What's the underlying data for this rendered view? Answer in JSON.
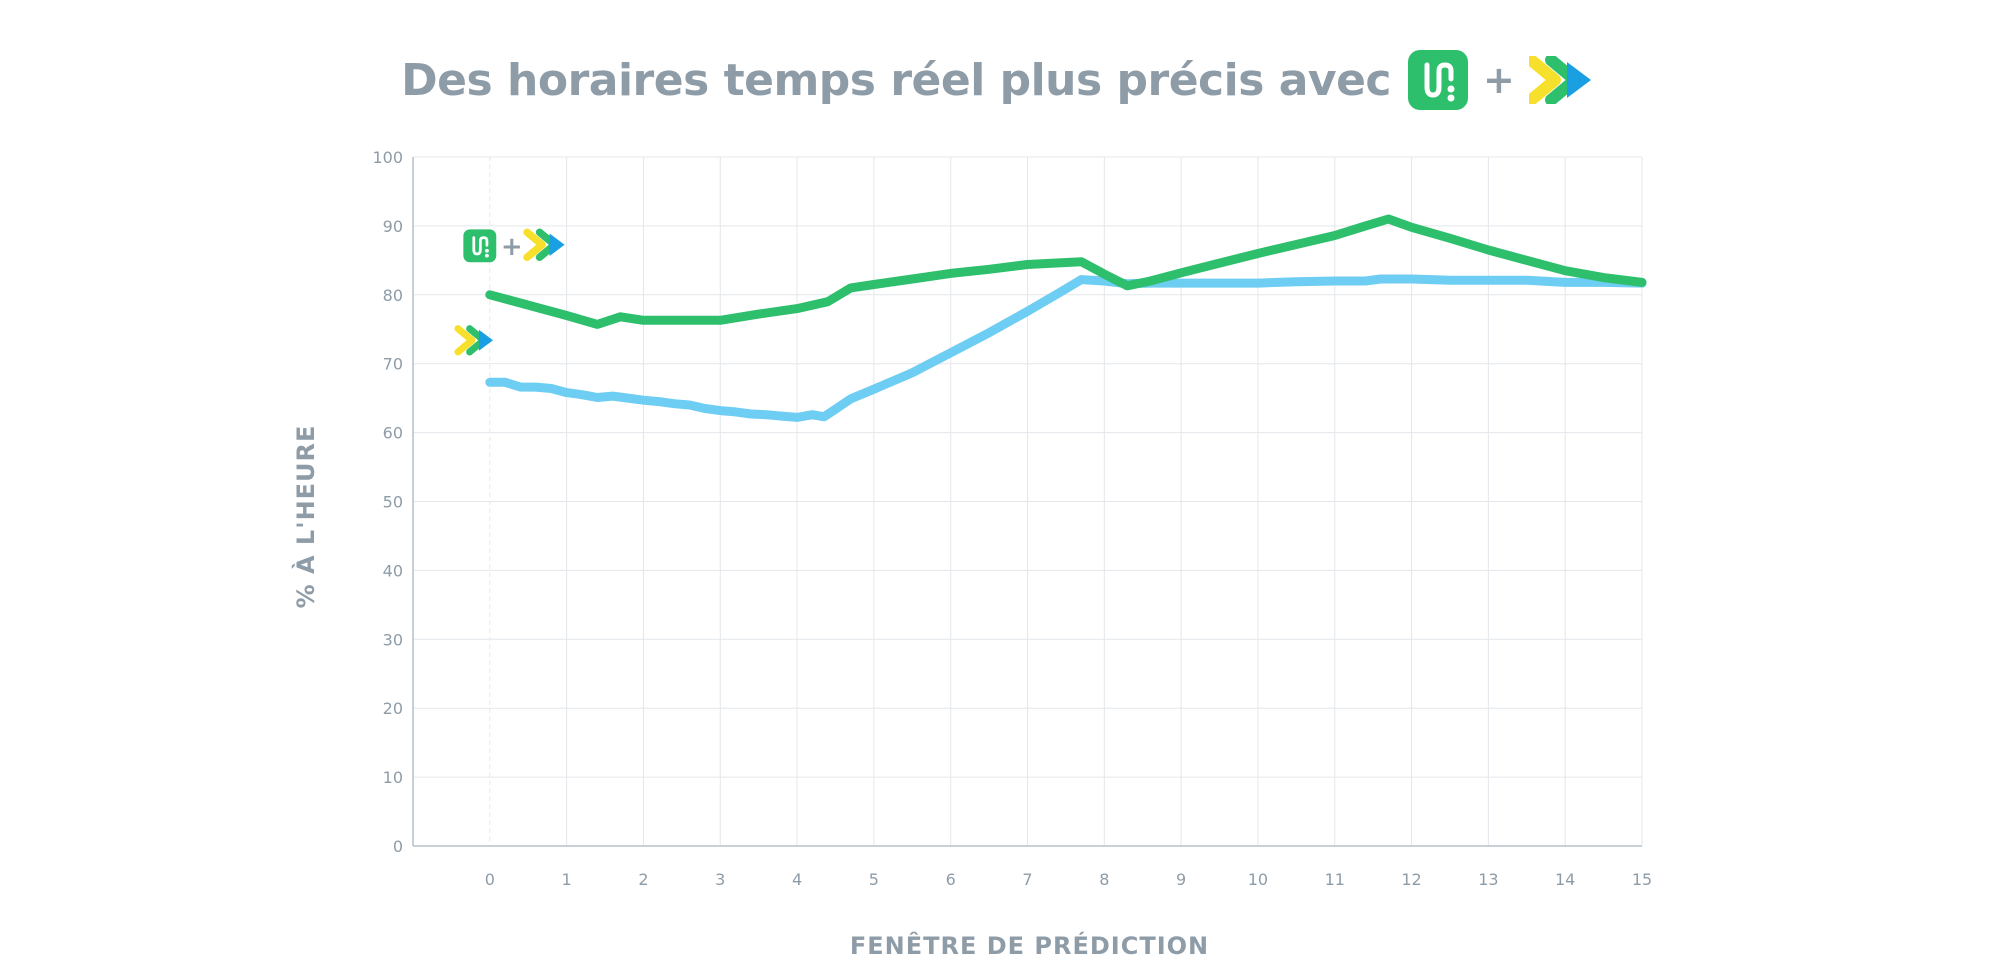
{
  "title": {
    "text": "Des horaires temps réel plus précis avec",
    "plus": "+",
    "icons": [
      "transit-app-icon",
      "partner-arrows-icon"
    ]
  },
  "colors": {
    "axis_text": "#8e9ca8",
    "grid": "#e3e7eb",
    "axis": "#b7c2cc",
    "combined_series": "#2dbf6c",
    "partner_series": "#6dcdf2",
    "transit_icon_bg": "#2dbf6c",
    "arrow_yellow": "#f7e02b",
    "arrow_green": "#2dbf6c",
    "arrow_blue": "#1aa0e2"
  },
  "chart_data": {
    "type": "line",
    "xlabel": "FENÊTRE DE PRÉDICTION",
    "ylabel": "% À L'HEURE",
    "xlim": [
      -1,
      15
    ],
    "ylim": [
      0,
      100
    ],
    "x_ticks": [
      0,
      1,
      2,
      3,
      4,
      5,
      6,
      7,
      8,
      9,
      10,
      11,
      12,
      13,
      14,
      15
    ],
    "y_ticks": [
      0,
      10,
      20,
      30,
      40,
      50,
      60,
      70,
      80,
      90,
      100
    ],
    "grid": true,
    "legend": "inline labels with icons at start of each line",
    "series": [
      {
        "icons": [
          "transit-app-icon",
          "plus",
          "partner-arrows-icon"
        ],
        "color": "#2dbf6c",
        "points": [
          [
            0,
            80
          ],
          [
            0.5,
            78.5
          ],
          [
            1,
            77
          ],
          [
            1.4,
            75.7
          ],
          [
            1.7,
            76.8
          ],
          [
            2,
            76.3
          ],
          [
            2.5,
            76.3
          ],
          [
            3,
            76.3
          ],
          [
            3.5,
            77.2
          ],
          [
            4,
            78
          ],
          [
            4.4,
            79
          ],
          [
            4.7,
            81
          ],
          [
            5,
            81.5
          ],
          [
            5.5,
            82.3
          ],
          [
            6,
            83.1
          ],
          [
            6.5,
            83.7
          ],
          [
            7,
            84.4
          ],
          [
            7.7,
            84.8
          ],
          [
            8,
            83
          ],
          [
            8.3,
            81.3
          ],
          [
            8.6,
            82
          ],
          [
            9,
            83.2
          ],
          [
            9.5,
            84.6
          ],
          [
            10,
            86
          ],
          [
            10.5,
            87.3
          ],
          [
            11,
            88.6
          ],
          [
            11.4,
            90
          ],
          [
            11.7,
            91
          ],
          [
            12,
            89.8
          ],
          [
            12.5,
            88.2
          ],
          [
            13,
            86.5
          ],
          [
            13.5,
            85
          ],
          [
            14,
            83.5
          ],
          [
            14.5,
            82.5
          ],
          [
            15,
            81.8
          ]
        ]
      },
      {
        "icons": [
          "partner-arrows-icon"
        ],
        "color": "#6dcdf2",
        "points": [
          [
            0,
            67.3
          ],
          [
            0.2,
            67.3
          ],
          [
            0.4,
            66.6
          ],
          [
            0.6,
            66.6
          ],
          [
            0.8,
            66.4
          ],
          [
            1,
            65.8
          ],
          [
            1.2,
            65.5
          ],
          [
            1.4,
            65.1
          ],
          [
            1.6,
            65.3
          ],
          [
            1.8,
            65
          ],
          [
            2,
            64.7
          ],
          [
            2.2,
            64.5
          ],
          [
            2.4,
            64.2
          ],
          [
            2.6,
            64
          ],
          [
            2.8,
            63.5
          ],
          [
            3,
            63.2
          ],
          [
            3.2,
            63
          ],
          [
            3.4,
            62.7
          ],
          [
            3.6,
            62.6
          ],
          [
            3.8,
            62.4
          ],
          [
            4,
            62.2
          ],
          [
            4.2,
            62.6
          ],
          [
            4.35,
            62.3
          ],
          [
            4.5,
            63.4
          ],
          [
            4.7,
            64.9
          ],
          [
            5,
            66.3
          ],
          [
            5.5,
            68.7
          ],
          [
            6,
            71.6
          ],
          [
            6.5,
            74.5
          ],
          [
            7,
            77.6
          ],
          [
            7.4,
            80.2
          ],
          [
            7.7,
            82.2
          ],
          [
            8,
            82
          ],
          [
            8.3,
            81.6
          ],
          [
            8.6,
            81.7
          ],
          [
            9,
            81.7
          ],
          [
            9.5,
            81.7
          ],
          [
            10,
            81.7
          ],
          [
            10.5,
            81.9
          ],
          [
            11,
            82
          ],
          [
            11.4,
            82
          ],
          [
            11.6,
            82.3
          ],
          [
            12,
            82.3
          ],
          [
            12.5,
            82.1
          ],
          [
            13,
            82.1
          ],
          [
            13.5,
            82.1
          ],
          [
            14,
            81.8
          ],
          [
            14.5,
            81.8
          ],
          [
            15,
            81.7
          ]
        ]
      }
    ]
  }
}
